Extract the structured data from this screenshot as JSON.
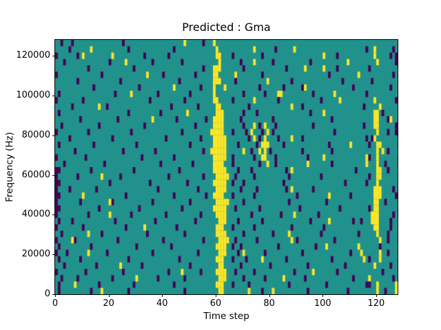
{
  "chart_data": {
    "type": "heatmap",
    "title": "Predicted : Gma",
    "xlabel": "Time step",
    "ylabel": "Frequency (Hz)",
    "xlim": [
      0,
      128
    ],
    "ylim": [
      0,
      128000
    ],
    "xticks": [
      0,
      20,
      40,
      60,
      80,
      100,
      120
    ],
    "yticks": [
      0,
      20000,
      40000,
      60000,
      80000,
      100000,
      120000
    ],
    "legend": "none",
    "grid_lines": "off",
    "colors": {
      "teal_background": "#21918c",
      "purple_class": "#440154",
      "yellow_class": "#fde725",
      "axes_text": "#000000",
      "figure_background": "#ffffff"
    },
    "grid": {
      "rows": 40,
      "cols": 128,
      "row0_is_top": true
    },
    "cells": [
      {
        "P": [
          2,
          6,
          25,
          55
        ],
        "Y": [
          48,
          59
        ]
      },
      {
        "P": [
          5,
          27,
          44,
          82,
          116,
          126
        ],
        "Y": [
          13,
          60,
          74,
          89,
          119
        ]
      },
      {
        "P": [
          0,
          8,
          33,
          42,
          66,
          77,
          105,
          125,
          127
        ],
        "Y": [
          10,
          21,
          60,
          61,
          100,
          119
        ]
      },
      {
        "P": [
          3,
          20,
          36,
          47,
          69,
          81,
          95,
          127
        ],
        "Y": [
          26,
          61,
          74,
          109,
          120
        ]
      },
      {
        "P": [
          12,
          29,
          55,
          70,
          86,
          105,
          117
        ],
        "Y": [
          59,
          60,
          61,
          93,
          100
        ]
      },
      {
        "P": [
          0,
          17,
          40,
          52,
          77,
          102,
          126
        ],
        "Y": [
          34,
          59,
          60,
          67,
          113
        ]
      },
      {
        "P": [
          8,
          24,
          46,
          67,
          88,
          107,
          118
        ],
        "Y": [
          59,
          60,
          61,
          79
        ]
      },
      {
        "P": [
          14,
          31,
          54,
          76,
          85,
          92,
          111,
          125
        ],
        "Y": [
          44,
          59,
          63,
          93
        ]
      },
      {
        "P": [
          1,
          22,
          38,
          50,
          70,
          78,
          96,
          116
        ],
        "Y": [
          28,
          59,
          83,
          84,
          104
        ]
      },
      {
        "P": [
          0,
          10,
          35,
          48,
          66,
          83,
          99,
          127
        ],
        "Y": [
          59,
          60,
          74,
          106,
          119
        ]
      },
      {
        "P": [
          6,
          19,
          43,
          53,
          72,
          92,
          115
        ],
        "Y": [
          16,
          60,
          61,
          88,
          121
        ]
      },
      {
        "P": [
          1,
          27,
          39,
          70,
          75,
          95,
          122
        ],
        "Y": [
          49,
          60,
          61,
          62,
          100,
          119,
          120
        ]
      },
      {
        "P": [
          9,
          23,
          45,
          56,
          69,
          81,
          103,
          124
        ],
        "Y": [
          36,
          59,
          60,
          61,
          62,
          119,
          120,
          125
        ]
      },
      {
        "P": [
          2,
          16,
          33,
          52,
          70,
          76,
          82,
          96,
          115,
          127
        ],
        "Y": [
          59,
          60,
          61,
          62,
          74,
          78,
          119,
          120
        ]
      },
      {
        "P": [
          0,
          12,
          28,
          47,
          66,
          71,
          77,
          81,
          104,
          124,
          127
        ],
        "Y": [
          58,
          59,
          60,
          61,
          62,
          73,
          79,
          120
        ]
      },
      {
        "P": [
          5,
          21,
          41,
          54,
          72,
          76,
          83,
          92,
          116,
          118
        ],
        "Y": [
          59,
          60,
          61,
          62,
          63,
          74,
          78,
          88,
          119
        ]
      },
      {
        "P": [
          1,
          14,
          30,
          50,
          68,
          75,
          85,
          102,
          117
        ],
        "Y": [
          59,
          60,
          61,
          62,
          63,
          77,
          78,
          79,
          110,
          120,
          121
        ]
      },
      {
        "P": [
          7,
          25,
          37,
          55,
          73,
          80,
          92,
          103,
          124
        ],
        "Y": [
          58,
          59,
          60,
          61,
          62,
          63,
          70,
          76,
          78,
          120,
          122
        ]
      },
      {
        "P": [
          0,
          11,
          32,
          44,
          66,
          74,
          82,
          94,
          117
        ],
        "Y": [
          59,
          60,
          61,
          62,
          63,
          77,
          78,
          100,
          116,
          120
        ]
      },
      {
        "P": [
          3,
          18,
          39,
          51,
          66,
          76,
          82,
          103,
          123
        ],
        "Y": [
          59,
          60,
          61,
          62,
          79,
          94,
          116,
          120
        ]
      },
      {
        "P": [
          0,
          1,
          13,
          29,
          46,
          68,
          73,
          86,
          112,
          124
        ],
        "Y": [
          59,
          60,
          61,
          62,
          63,
          88,
          120,
          121
        ]
      },
      {
        "P": [
          0,
          8,
          24,
          42,
          55,
          67,
          74,
          87,
          99,
          117
        ],
        "Y": [
          17,
          60,
          61,
          62,
          63,
          64,
          120,
          121
        ]
      },
      {
        "P": [
          0,
          1,
          20,
          35,
          49,
          66,
          70,
          85,
          108,
          116
        ],
        "Y": [
          59,
          60,
          61,
          62,
          63,
          120
        ]
      },
      {
        "P": [
          0,
          5,
          15,
          38,
          53,
          69,
          75,
          86,
          96,
          126
        ],
        "Y": [
          60,
          61,
          62,
          63,
          88,
          119,
          120,
          121
        ]
      },
      {
        "P": [
          0,
          1,
          26,
          44,
          56,
          66,
          74,
          90,
          110,
          127
        ],
        "Y": [
          10,
          59,
          60,
          61,
          62,
          102,
          119,
          120,
          121
        ]
      },
      {
        "P": [
          0,
          9,
          21,
          36,
          50,
          70,
          87,
          101,
          123
        ],
        "Y": [
          20,
          60,
          61,
          62,
          63,
          64,
          119,
          120
        ]
      },
      {
        "P": [
          0,
          1,
          16,
          31,
          47,
          67,
          76,
          91,
          106,
          117
        ],
        "Y": [
          59,
          60,
          61,
          62,
          63,
          119,
          120
        ]
      },
      {
        "P": [
          0,
          12,
          28,
          41,
          54,
          73,
          84,
          98,
          126
        ],
        "Y": [
          20,
          60,
          61,
          62,
          63,
          89,
          118,
          119,
          120
        ]
      },
      {
        "P": [
          1,
          6,
          22,
          37,
          52,
          68,
          77,
          95,
          111,
          114,
          125
        ],
        "Y": [
          61,
          62,
          63,
          102,
          118,
          119,
          120
        ]
      },
      {
        "P": [
          0,
          10,
          26,
          45,
          66,
          74,
          88,
          100,
          125
        ],
        "Y": [
          33,
          60,
          61,
          62,
          119,
          120
        ]
      },
      {
        "P": [
          2,
          17,
          34,
          48,
          70,
          81,
          99,
          113,
          124
        ],
        "Y": [
          12,
          60,
          61,
          62,
          63,
          87,
          120
        ]
      },
      {
        "P": [
          0,
          7,
          23,
          40,
          55,
          67,
          75,
          90,
          104,
          124
        ],
        "Y": [
          6,
          61,
          62,
          63,
          64,
          88,
          121
        ]
      },
      {
        "P": [
          1,
          13,
          30,
          43,
          66,
          69,
          83,
          97,
          121
        ],
        "Y": [
          60,
          61,
          62,
          63,
          101,
          113
        ]
      },
      {
        "P": [
          0,
          4,
          19,
          36,
          53,
          68,
          78,
          92,
          110,
          124
        ],
        "Y": [
          12,
          61,
          62,
          63,
          70,
          114,
          121
        ]
      },
      {
        "P": [
          1,
          9,
          27,
          46,
          66,
          71,
          86,
          103,
          117
        ],
        "Y": [
          60,
          61,
          62,
          77,
          115,
          121
        ]
      },
      {
        "P": [
          3,
          15,
          32,
          50,
          69,
          80,
          94,
          108,
          125
        ],
        "Y": [
          24,
          61,
          62,
          119
        ]
      },
      {
        "P": [
          0,
          11,
          25,
          42,
          54,
          67,
          74,
          89,
          105,
          122
        ],
        "Y": [
          47,
          60,
          61,
          62,
          63,
          96
        ]
      },
      {
        "P": [
          2,
          8,
          21,
          38,
          48,
          70,
          78,
          93,
          111,
          126
        ],
        "Y": [
          30,
          61,
          62,
          63,
          85,
          117
        ]
      },
      {
        "P": [
          1,
          16,
          29,
          44,
          66,
          72,
          87,
          101,
          116,
          117
        ],
        "Y": [
          7,
          60,
          61,
          62,
          120,
          127
        ]
      },
      {
        "P": [
          1,
          13,
          27,
          48,
          77,
          94,
          109,
          123
        ],
        "Y": [
          17,
          61,
          62,
          72,
          81,
          120,
          127
        ]
      }
    ]
  }
}
